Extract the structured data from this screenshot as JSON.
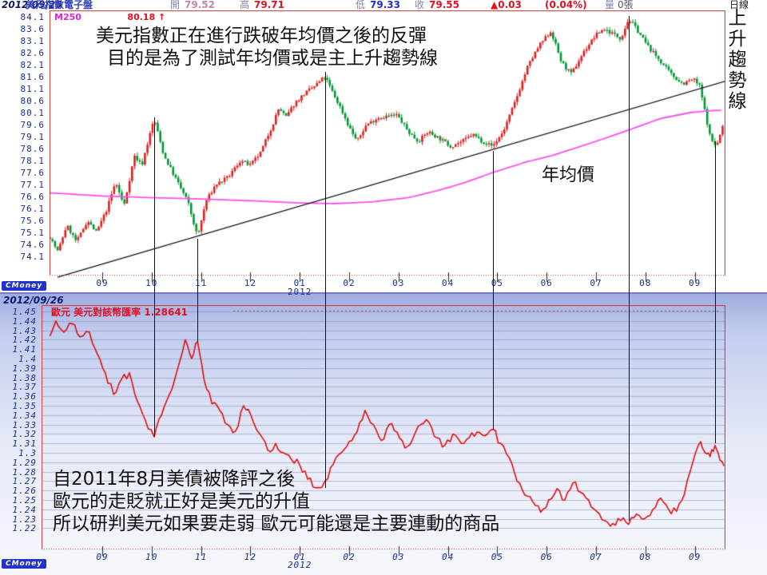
{
  "top_chart": {
    "header": {
      "date": "2012/09/25",
      "title": "美元指數電子盤",
      "open_label": "開",
      "open_value": "79.52",
      "high_label": "高",
      "high_value": "79.71",
      "low_label": "低",
      "low_value": "79.33",
      "close_label": "收",
      "close_value": "79.55",
      "change_value": "▲0.03",
      "change_pct": "(0.04%)",
      "volume_label": "量",
      "volume_value": "0張",
      "period_label": "日線"
    },
    "ma_legend": {
      "name": "M250",
      "value": "80.18 ↑"
    },
    "annotations": {
      "line1": "美元指數正在進行跌破年均價之後的反彈",
      "line2": "目的是為了測試年均價或是主上升趨勢線",
      "ma_label": "年均價",
      "trendline_label": "上升趨勢線"
    },
    "logo": "CMoney"
  },
  "bottom_chart": {
    "date": "2012/09/26",
    "legend": "歐元 美元對該幣匯率 1.28641",
    "annotations": {
      "line1": "自2011年8月美債被降評之後",
      "line2": "歐元的走貶就正好是美元的升值",
      "line3": "所以研判美元如果要走弱 歐元可能還是主要連動的商品"
    },
    "logo": "CMoney"
  },
  "chart_data": [
    {
      "type": "candlestick",
      "title": "美元指數電子盤 日線 (US Dollar Index, daily, 2011/09 - 2012/09)",
      "open": 79.52,
      "high": 79.71,
      "low": 79.33,
      "close": 79.55,
      "change": 0.03,
      "change_pct": "0.04%",
      "x_tick_labels": [
        "09",
        "10",
        "11",
        "12",
        "01",
        "02",
        "03",
        "04",
        "05",
        "06",
        "07",
        "08",
        "09"
      ],
      "x_year_label": "2012",
      "x_year_under_index": 4,
      "y_tick_labels": [
        84.1,
        83.6,
        83.1,
        82.6,
        82.1,
        81.6,
        81.1,
        80.6,
        80.1,
        79.6,
        79.1,
        78.6,
        78.1,
        77.6,
        77.1,
        76.6,
        76.1,
        75.6,
        75.1,
        74.6,
        74.1
      ],
      "ylim": [
        73.3,
        84.4
      ],
      "grid": false,
      "up_color": "#e02020",
      "down_color": "#009933",
      "close_waypoints": [
        [
          -1.06,
          74.9
        ],
        [
          -0.9,
          74.3
        ],
        [
          -0.72,
          75.4
        ],
        [
          -0.52,
          74.7
        ],
        [
          -0.3,
          75.6
        ],
        [
          -0.12,
          75.1
        ],
        [
          0.08,
          76.0
        ],
        [
          0.27,
          77.2
        ],
        [
          0.44,
          76.2
        ],
        [
          0.65,
          78.3
        ],
        [
          0.8,
          77.9
        ],
        [
          1.05,
          79.85
        ],
        [
          1.25,
          78.3
        ],
        [
          1.5,
          77.3
        ],
        [
          1.73,
          76.4
        ],
        [
          1.93,
          74.9
        ],
        [
          2.1,
          76.4
        ],
        [
          2.3,
          77.1
        ],
        [
          2.55,
          77.4
        ],
        [
          2.8,
          78.1
        ],
        [
          3.0,
          77.9
        ],
        [
          3.2,
          78.4
        ],
        [
          3.45,
          79.6
        ],
        [
          3.58,
          80.3
        ],
        [
          3.72,
          79.9
        ],
        [
          3.9,
          80.5
        ],
        [
          4.1,
          80.9
        ],
        [
          4.3,
          81.2
        ],
        [
          4.51,
          81.6
        ],
        [
          4.7,
          80.8
        ],
        [
          4.85,
          80.2
        ],
        [
          5.0,
          79.5
        ],
        [
          5.16,
          78.9
        ],
        [
          5.35,
          79.6
        ],
        [
          5.6,
          79.9
        ],
        [
          5.97,
          80.0
        ],
        [
          6.2,
          79.3
        ],
        [
          6.4,
          78.9
        ],
        [
          6.6,
          79.3
        ],
        [
          6.85,
          79.0
        ],
        [
          7.05,
          78.7
        ],
        [
          7.3,
          78.9
        ],
        [
          7.5,
          79.2
        ],
        [
          7.7,
          78.9
        ],
        [
          7.91,
          78.7
        ],
        [
          8.12,
          79.3
        ],
        [
          8.37,
          80.6
        ],
        [
          8.61,
          82.0
        ],
        [
          8.85,
          82.9
        ],
        [
          9.09,
          83.5
        ],
        [
          9.3,
          82.2
        ],
        [
          9.5,
          81.7
        ],
        [
          9.74,
          82.6
        ],
        [
          9.98,
          83.3
        ],
        [
          10.15,
          83.6
        ],
        [
          10.34,
          83.4
        ],
        [
          10.5,
          83.2
        ],
        [
          10.66,
          84.0
        ],
        [
          10.82,
          83.6
        ],
        [
          11.04,
          82.9
        ],
        [
          11.28,
          82.3
        ],
        [
          11.52,
          81.7
        ],
        [
          11.76,
          81.3
        ],
        [
          11.97,
          81.5
        ],
        [
          12.1,
          81.2
        ],
        [
          12.22,
          80.0
        ],
        [
          12.32,
          79.0
        ],
        [
          12.44,
          78.7
        ],
        [
          12.57,
          79.55
        ]
      ],
      "ma250": {
        "label": "M250 年均價",
        "value": 80.18,
        "color": "#ff4df2",
        "points": [
          [
            -1.06,
            76.75
          ],
          [
            0,
            76.62
          ],
          [
            1,
            76.55
          ],
          [
            1.9,
            76.5
          ],
          [
            3,
            76.42
          ],
          [
            4,
            76.33
          ],
          [
            4.7,
            76.3
          ],
          [
            5.5,
            76.38
          ],
          [
            6.2,
            76.55
          ],
          [
            6.8,
            76.85
          ],
          [
            7.3,
            77.15
          ],
          [
            7.91,
            77.6
          ],
          [
            8.6,
            78.05
          ],
          [
            9.1,
            78.3
          ],
          [
            10,
            78.9
          ],
          [
            10.7,
            79.4
          ],
          [
            11.3,
            79.85
          ],
          [
            11.9,
            80.1
          ],
          [
            12.3,
            80.18
          ],
          [
            12.62,
            80.2
          ]
        ]
      },
      "trendline": {
        "label": "上升趨勢線",
        "color": "#111111",
        "points": [
          [
            -0.906,
            73.23
          ],
          [
            12.65,
            81.43
          ]
        ]
      }
    },
    {
      "type": "line",
      "title": "歐元 美元對該幣匯率 (EUR/USD)",
      "last_value": 1.28641,
      "x_tick_labels": [
        "09",
        "10",
        "11",
        "12",
        "01",
        "02",
        "03",
        "04",
        "05",
        "06",
        "07",
        "08",
        "09"
      ],
      "x_year_label": "2012",
      "x_year_under_index": 4,
      "y_tick_labels": [
        1.45,
        1.44,
        1.43,
        1.42,
        1.41,
        1.4,
        1.39,
        1.38,
        1.37,
        1.36,
        1.35,
        1.34,
        1.33,
        1.32,
        1.31,
        1.3,
        1.29,
        1.28,
        1.27,
        1.26,
        1.25,
        1.24,
        1.23,
        1.22
      ],
      "ylim": [
        1.1975,
        1.46
      ],
      "grid": true,
      "line_color": "#dd1111",
      "points": [
        [
          -1.06,
          1.424
        ],
        [
          -0.94,
          1.44
        ],
        [
          -0.78,
          1.428
        ],
        [
          -0.61,
          1.437
        ],
        [
          -0.45,
          1.423
        ],
        [
          -0.26,
          1.428
        ],
        [
          -0.1,
          1.405
        ],
        [
          0.06,
          1.385
        ],
        [
          0.23,
          1.362
        ],
        [
          0.39,
          1.378
        ],
        [
          0.55,
          1.385
        ],
        [
          0.71,
          1.355
        ],
        [
          0.87,
          1.335
        ],
        [
          1.05,
          1.317
        ],
        [
          1.2,
          1.34
        ],
        [
          1.36,
          1.362
        ],
        [
          1.52,
          1.388
        ],
        [
          1.68,
          1.42
        ],
        [
          1.81,
          1.4
        ],
        [
          1.93,
          1.418
        ],
        [
          2.06,
          1.378
        ],
        [
          2.22,
          1.352
        ],
        [
          2.38,
          1.345
        ],
        [
          2.54,
          1.33
        ],
        [
          2.7,
          1.323
        ],
        [
          2.86,
          1.35
        ],
        [
          3.01,
          1.34
        ],
        [
          3.19,
          1.32
        ],
        [
          3.35,
          1.303
        ],
        [
          3.51,
          1.31
        ],
        [
          3.67,
          1.3
        ],
        [
          3.83,
          1.293
        ],
        [
          4.0,
          1.287
        ],
        [
          4.16,
          1.272
        ],
        [
          4.32,
          1.263
        ],
        [
          4.51,
          1.27
        ],
        [
          4.68,
          1.288
        ],
        [
          4.84,
          1.3
        ],
        [
          5.0,
          1.312
        ],
        [
          5.16,
          1.322
        ],
        [
          5.32,
          1.345
        ],
        [
          5.49,
          1.33
        ],
        [
          5.65,
          1.313
        ],
        [
          5.81,
          1.33
        ],
        [
          5.97,
          1.322
        ],
        [
          6.13,
          1.305
        ],
        [
          6.29,
          1.315
        ],
        [
          6.45,
          1.33
        ],
        [
          6.62,
          1.332
        ],
        [
          6.78,
          1.316
        ],
        [
          6.94,
          1.308
        ],
        [
          7.1,
          1.32
        ],
        [
          7.27,
          1.31
        ],
        [
          7.43,
          1.316
        ],
        [
          7.59,
          1.322
        ],
        [
          7.75,
          1.318
        ],
        [
          7.91,
          1.325
        ],
        [
          8.07,
          1.31
        ],
        [
          8.24,
          1.295
        ],
        [
          8.4,
          1.27
        ],
        [
          8.56,
          1.255
        ],
        [
          8.72,
          1.248
        ],
        [
          8.88,
          1.237
        ],
        [
          9.04,
          1.25
        ],
        [
          9.21,
          1.262
        ],
        [
          9.37,
          1.25
        ],
        [
          9.53,
          1.268
        ],
        [
          9.69,
          1.258
        ],
        [
          9.85,
          1.25
        ],
        [
          10.01,
          1.238
        ],
        [
          10.18,
          1.228
        ],
        [
          10.34,
          1.225
        ],
        [
          10.5,
          1.228
        ],
        [
          10.66,
          1.224
        ],
        [
          10.82,
          1.235
        ],
        [
          10.98,
          1.23
        ],
        [
          11.15,
          1.24
        ],
        [
          11.31,
          1.252
        ],
        [
          11.47,
          1.24
        ],
        [
          11.63,
          1.238
        ],
        [
          11.79,
          1.256
        ],
        [
          11.96,
          1.29
        ],
        [
          12.12,
          1.312
        ],
        [
          12.21,
          1.3
        ],
        [
          12.31,
          1.296
        ],
        [
          12.41,
          1.308
        ],
        [
          12.51,
          1.292
        ],
        [
          12.59,
          1.286
        ]
      ]
    }
  ],
  "link_lines": [
    {
      "u": 1.05,
      "top_price": 79.9,
      "bottom_value": 1.317
    },
    {
      "u": 1.93,
      "top_price": 74.85,
      "bottom_value": 1.418
    },
    {
      "u": 4.51,
      "top_price": 81.8,
      "bottom_value": 1.263
    },
    {
      "u": 7.91,
      "top_price": 78.5,
      "bottom_value": 1.325
    },
    {
      "u": 10.66,
      "top_price": 84.13,
      "bottom_value": 1.228
    },
    {
      "u": 12.41,
      "top_price": 78.9,
      "bottom_value": 1.31
    }
  ]
}
